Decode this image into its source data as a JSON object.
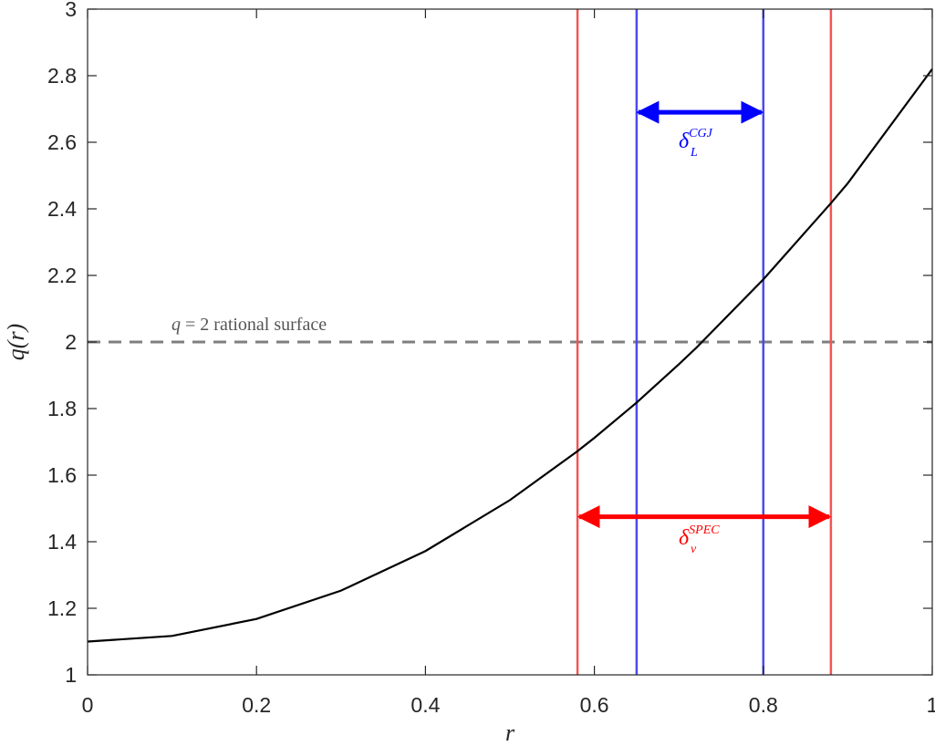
{
  "chart_data": {
    "type": "line",
    "xlabel": "r",
    "ylabel": "q(r)",
    "xlim": [
      0,
      1
    ],
    "ylim": [
      1,
      3
    ],
    "grid": false,
    "x_ticks": [
      "0",
      "0.2",
      "0.4",
      "0.6",
      "0.8",
      "1"
    ],
    "y_ticks": [
      "1",
      "1.2",
      "1.4",
      "1.6",
      "1.8",
      "2",
      "2.2",
      "2.4",
      "2.6",
      "2.8",
      "3"
    ],
    "series": [
      {
        "color": "#000000",
        "x": [
          0,
          0.1,
          0.2,
          0.3,
          0.4,
          0.5,
          0.58,
          0.6,
          0.65,
          0.7,
          0.72,
          0.8,
          0.88,
          0.9,
          1.0
        ],
        "y": [
          1.1,
          1.117,
          1.168,
          1.253,
          1.372,
          1.525,
          1.672,
          1.712,
          1.818,
          1.933,
          1.981,
          2.188,
          2.417,
          2.477,
          2.82
        ]
      }
    ],
    "reference_lines": [
      {
        "orientation": "horizontal",
        "value": 2,
        "style": "dashed",
        "color": "#7f7f7f"
      },
      {
        "orientation": "vertical",
        "value": 0.58,
        "color": "#f25555"
      },
      {
        "orientation": "vertical",
        "value": 0.88,
        "color": "#f25555"
      },
      {
        "orientation": "vertical",
        "value": 0.65,
        "color": "#4a4af0"
      },
      {
        "orientation": "vertical",
        "value": 0.8,
        "color": "#4a4af0"
      }
    ],
    "arrows": [
      {
        "from": 0.65,
        "to": 0.8,
        "at_y": 2.69,
        "color": "#0000ff"
      },
      {
        "from": 0.58,
        "to": 0.88,
        "at_y": 1.475,
        "color": "#ff0000"
      }
    ],
    "annotations": {
      "rational_surface": {
        "q": "q",
        "eq": " = 2 rational surface",
        "color": "#555555"
      },
      "delta_cgj": {
        "base": "δ",
        "sup": "CGJ",
        "sub": "L",
        "color": "#0000ff"
      },
      "delta_spec": {
        "base": "δ",
        "sup": "SPEC",
        "sub": "v",
        "color": "#ff0000"
      }
    }
  }
}
